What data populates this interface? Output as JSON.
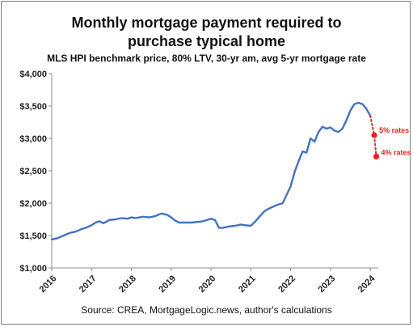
{
  "chart_data": {
    "type": "line",
    "title": "Monthly mortgage payment required to",
    "title_line2": "purchase typical home",
    "subtitle": "MLS HPI benchmark price, 80% LTV, 30-yr am, avg 5-yr mortgage rate",
    "source": "Source: CREA, MortgageLogic.news, author's calculations",
    "xlabel": "",
    "ylabel": "",
    "xlim": [
      2016,
      2024.2
    ],
    "ylim": [
      1000,
      4000
    ],
    "y_ticks": [
      1000,
      1500,
      2000,
      2500,
      3000,
      3500,
      4000
    ],
    "y_tick_labels": [
      "$1,000",
      "$1,500",
      "$2,000",
      "$2,500",
      "$3,000",
      "$3,500",
      "$4,000"
    ],
    "x_ticks": [
      2016,
      2017,
      2018,
      2019,
      2020,
      2021,
      2022,
      2023,
      2024
    ],
    "x_tick_labels": [
      "2016",
      "2017",
      "2018",
      "2019",
      "2020",
      "2021",
      "2022",
      "2023",
      "2024"
    ],
    "grid": false,
    "legend": "none",
    "colors": {
      "series": "#4472c4",
      "scenario": "#e8231f"
    },
    "series": [
      {
        "x": [
          2016.0,
          2016.15,
          2016.3,
          2016.45,
          2016.6,
          2016.75,
          2016.9,
          2017.0,
          2017.1,
          2017.2,
          2017.3,
          2017.45,
          2017.6,
          2017.75,
          2017.9,
          2018.0,
          2018.1,
          2018.2,
          2018.3,
          2018.45,
          2018.6,
          2018.75,
          2018.9,
          2019.0,
          2019.1,
          2019.2,
          2019.35,
          2019.5,
          2019.65,
          2019.8,
          2020.0,
          2020.1,
          2020.2,
          2020.3,
          2020.45,
          2020.6,
          2020.75,
          2020.85,
          2021.0,
          2021.1,
          2021.2,
          2021.35,
          2021.5,
          2021.65,
          2021.8,
          2021.9,
          2022.0,
          2022.1,
          2022.2,
          2022.3,
          2022.4,
          2022.5,
          2022.6,
          2022.7,
          2022.8,
          2022.9,
          2023.0,
          2023.1,
          2023.2,
          2023.3,
          2023.4,
          2023.5,
          2023.6,
          2023.7,
          2023.8,
          2023.9,
          2024.0
        ],
        "values": [
          1440,
          1460,
          1500,
          1540,
          1560,
          1600,
          1630,
          1660,
          1700,
          1720,
          1690,
          1740,
          1750,
          1770,
          1760,
          1780,
          1770,
          1780,
          1790,
          1780,
          1800,
          1840,
          1820,
          1780,
          1730,
          1700,
          1700,
          1700,
          1710,
          1720,
          1760,
          1740,
          1620,
          1620,
          1640,
          1650,
          1670,
          1660,
          1650,
          1710,
          1780,
          1880,
          1930,
          1970,
          2000,
          2130,
          2260,
          2480,
          2650,
          2800,
          2780,
          3000,
          2950,
          3100,
          3180,
          3150,
          3170,
          3120,
          3100,
          3150,
          3280,
          3430,
          3530,
          3550,
          3530,
          3460,
          3350
        ]
      }
    ],
    "scenarios": [
      {
        "label": "5% rates",
        "x": 2024.1,
        "y": 3050
      },
      {
        "label": "4% rates",
        "x": 2024.15,
        "y": 2720
      }
    ]
  }
}
